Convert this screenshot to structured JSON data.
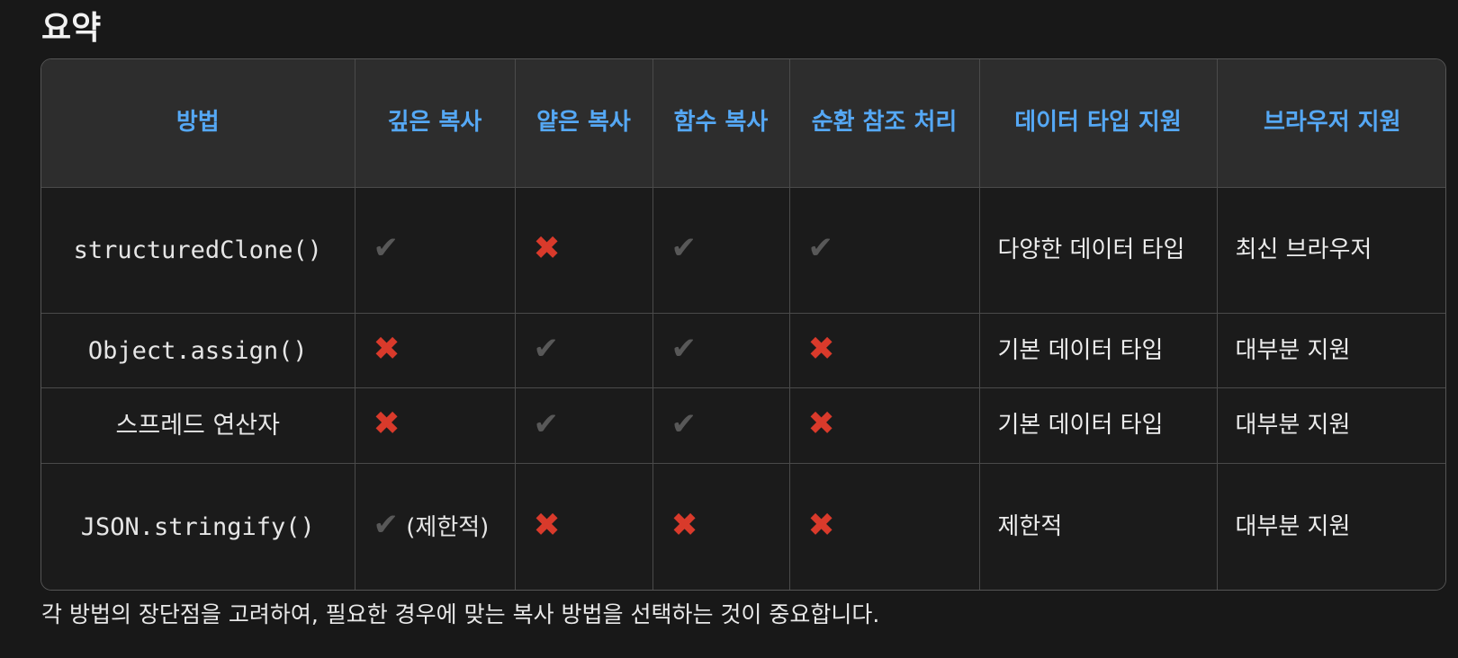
{
  "heading": "요약",
  "table": {
    "headers": [
      "방법",
      "깊은 복사",
      "얕은 복사",
      "함수 복사",
      "순환 참조 처리",
      "데이터 타입 지원",
      "브라우저 지원"
    ],
    "rows": [
      {
        "method": "structuredClone()",
        "deep_copy": "✔",
        "shallow_copy": "✖",
        "function_copy": "✔",
        "circular_ref": "✔",
        "data_types": "다양한 데이터 타입",
        "browser": "최신 브라우저"
      },
      {
        "method": "Object.assign()",
        "deep_copy": "✖",
        "shallow_copy": "✔",
        "function_copy": "✔",
        "circular_ref": "✖",
        "data_types": "기본 데이터 타입",
        "browser": "대부분 지원"
      },
      {
        "method": "스프레드 연산자",
        "deep_copy": "✖",
        "shallow_copy": "✔",
        "function_copy": "✔",
        "circular_ref": "✖",
        "data_types": "기본 데이터 타입",
        "browser": "대부분 지원"
      },
      {
        "method": "JSON.stringify()",
        "deep_copy": "✔",
        "deep_copy_note": "(제한적)",
        "shallow_copy": "✖",
        "function_copy": "✖",
        "circular_ref": "✖",
        "data_types": "제한적",
        "browser": "대부분 지원"
      }
    ]
  },
  "footer": "각 방법의 장단점을 고려하여, 필요한 경우에 맞는 복사 방법을 선택하는 것이 중요합니다.",
  "icons": {
    "check": "check-icon",
    "cross": "cross-icon"
  },
  "colors": {
    "background": "#181818",
    "header_background": "#2d2d2d",
    "header_text": "#55a8f5",
    "check": "#585858",
    "cross": "#d93a2b"
  }
}
